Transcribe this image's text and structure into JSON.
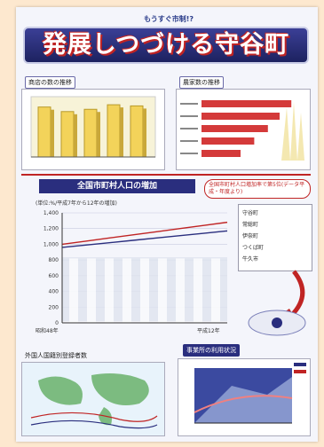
{
  "header": {
    "subtitle": "もうすぐ市制!?",
    "title": "発展しつづける守谷町"
  },
  "sections": {
    "top_left_label": "商店の数の推移",
    "top_right_label": "農家数の推移",
    "middle_title": "全国市町村人口の増加",
    "callout_note": "全国市町村人口増加率で第5位(データ平成・年度より)",
    "lower_left_label": "外国人国籍別登録者数",
    "lower_right_label": "事業所の利用状況",
    "middle_note": "(単位:%/平成7年から12年の増加)",
    "axis_start": "昭和48年",
    "axis_end": "平成12年"
  },
  "ranking": [
    "守谷町",
    "常総町",
    "伊奈町",
    "つくば町",
    "牛久市"
  ],
  "chart_data": [
    {
      "type": "bar",
      "title": "商店の数の推移",
      "values": [
        88,
        80,
        84,
        92,
        90
      ]
    },
    {
      "type": "bar",
      "title": "農家数の推移",
      "values": [
        92,
        80,
        68,
        54,
        40
      ]
    },
    {
      "type": "line",
      "title": "全国市町村人口の増加",
      "ylim": [
        0,
        1400
      ],
      "yticks": [
        "0",
        "200",
        "400",
        "600",
        "800",
        "1,000",
        "1,200",
        "1,400"
      ],
      "series": [
        {
          "values": [
            1000,
            1040,
            1080,
            1120,
            1160,
            1200,
            1240,
            1280
          ]
        },
        {
          "values": [
            960,
            990,
            1020,
            1050,
            1080,
            1110,
            1140,
            1170
          ]
        }
      ]
    }
  ],
  "colors": {
    "banner": "#2a2e7e",
    "accent_red": "#c02424",
    "bar_yellow": "#f3d35a",
    "bar_red": "#d43a3a"
  }
}
